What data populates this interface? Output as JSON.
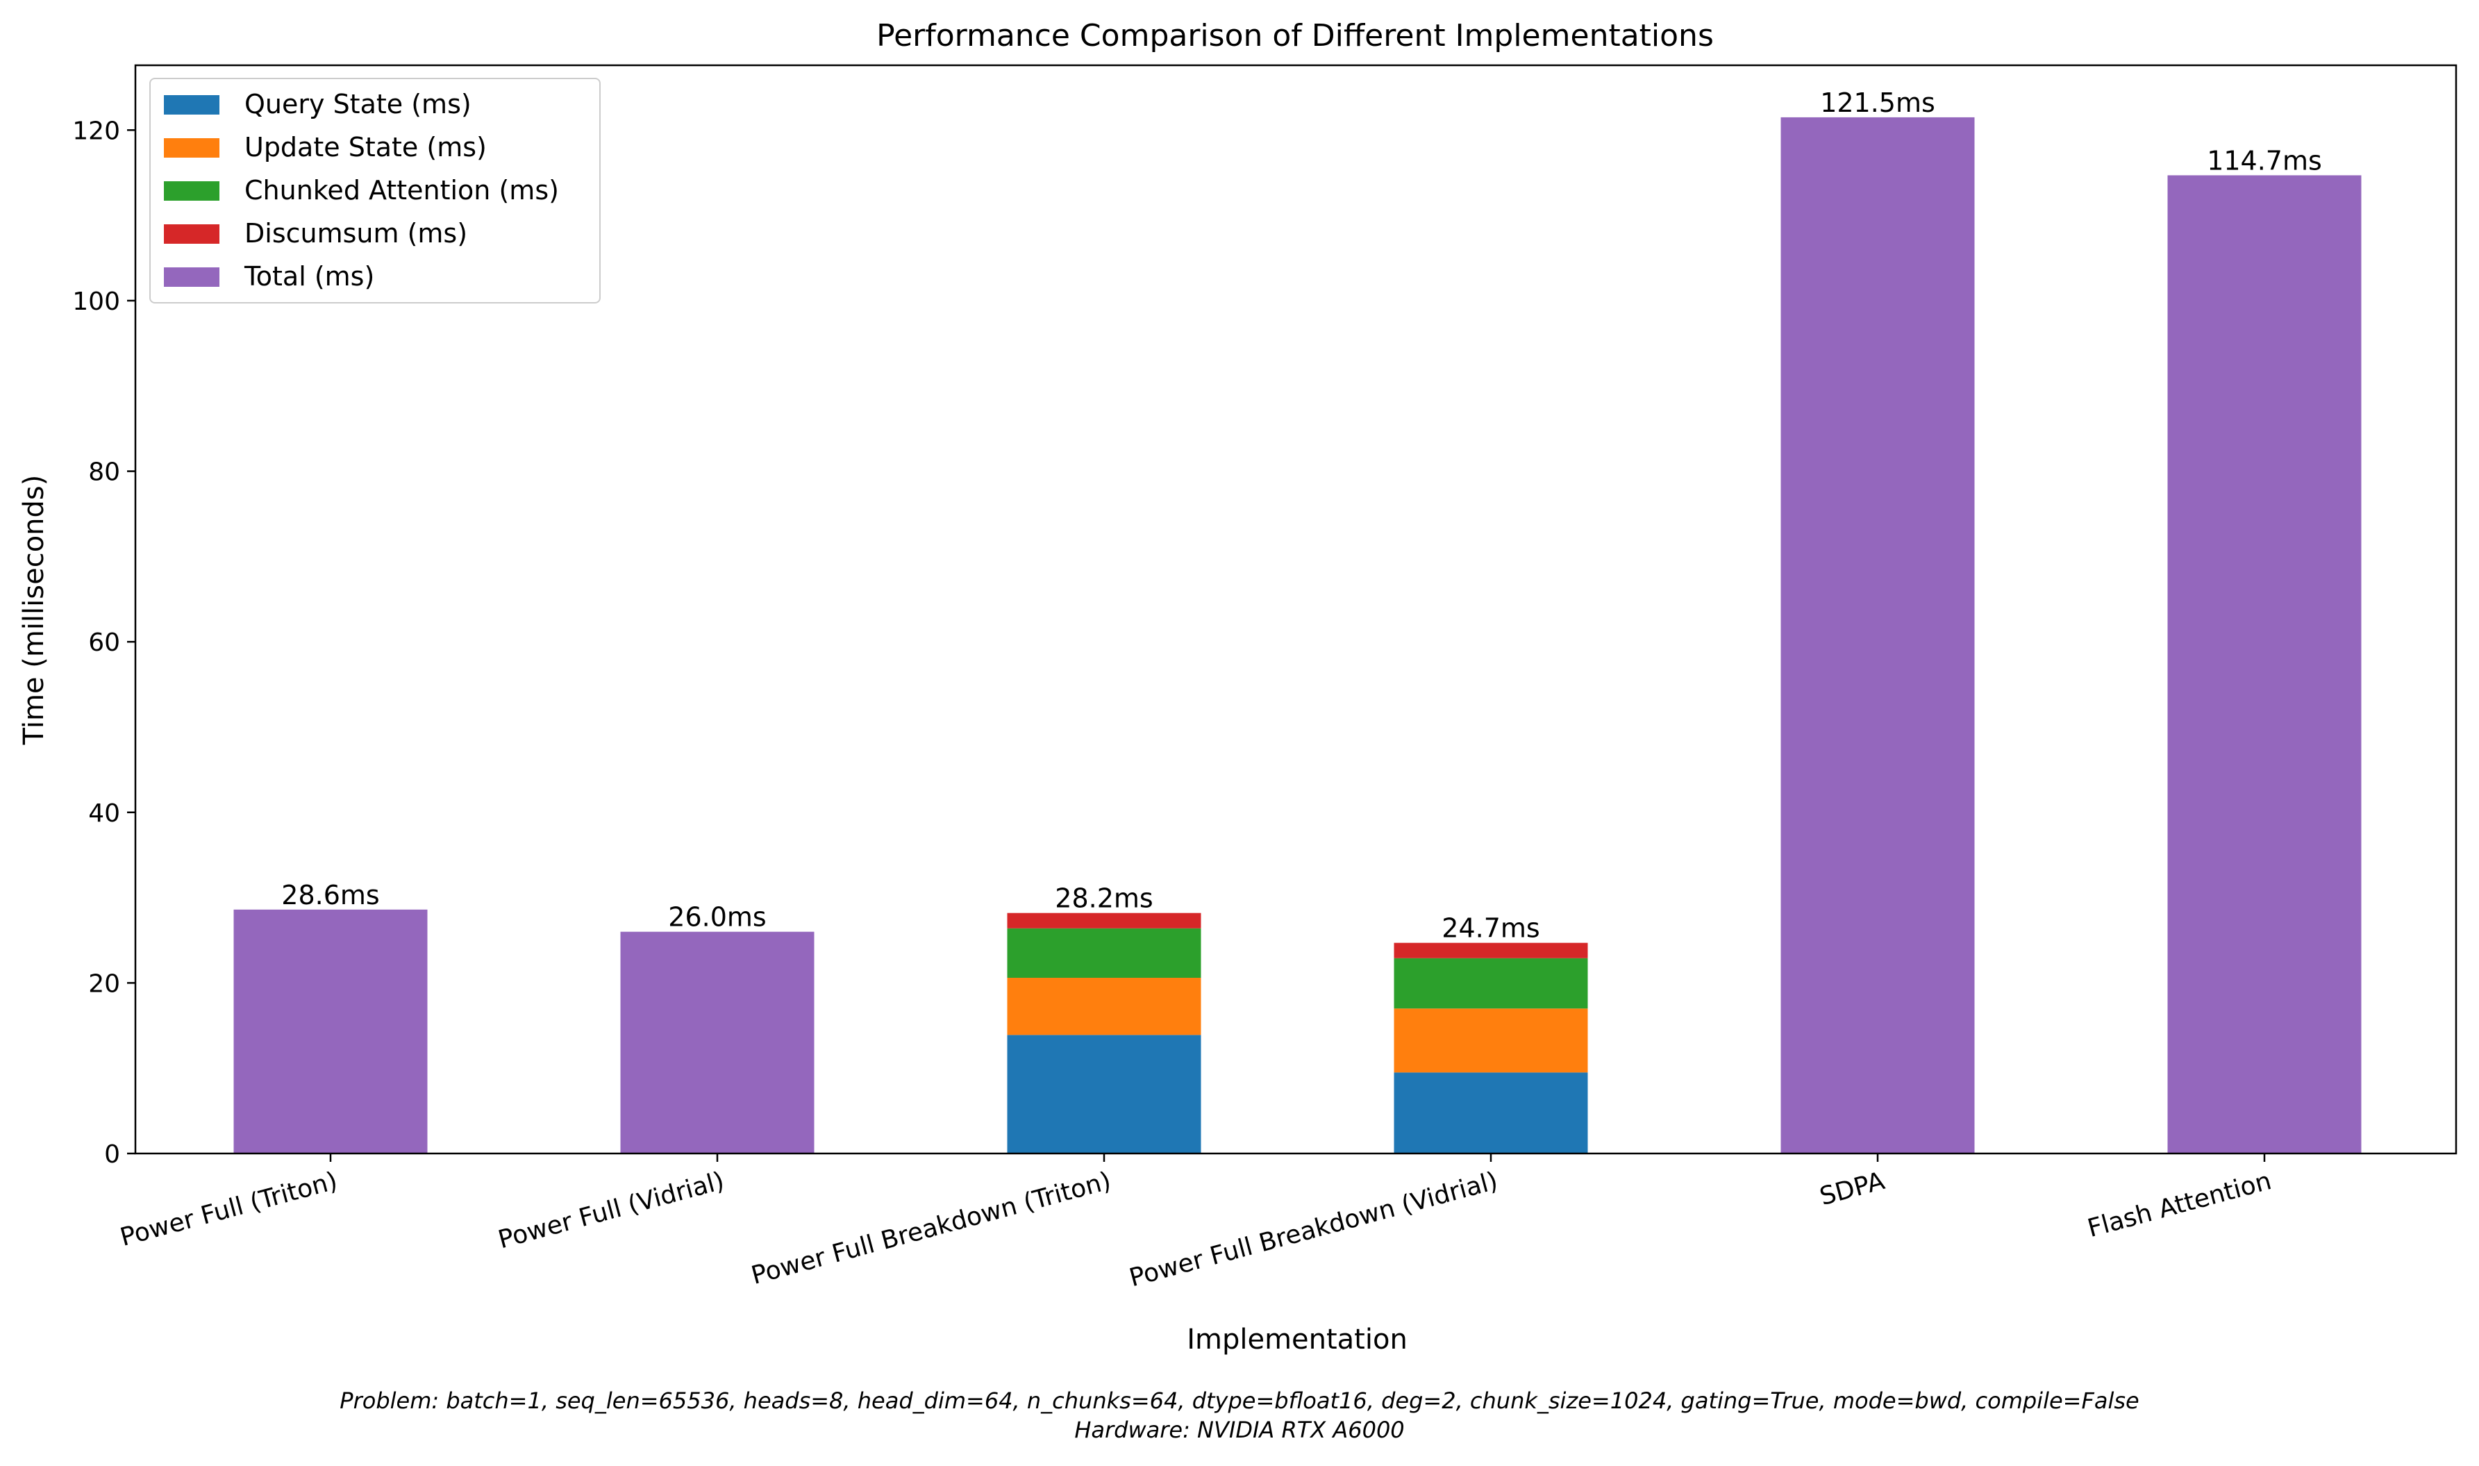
{
  "chart_data": {
    "type": "bar",
    "stacked": true,
    "title": "Performance Comparison of Different Implementations",
    "xlabel": "Implementation",
    "ylabel": "Time (milliseconds)",
    "ylim": [
      0,
      127.6
    ],
    "yticks": [
      0,
      20,
      40,
      60,
      80,
      100,
      120
    ],
    "grid": false,
    "legend_position": "top-left",
    "categories": [
      "Power Full (Triton)",
      "Power Full (Vidrial)",
      "Power Full Breakdown (Triton)",
      "Power Full Breakdown (Vidrial)",
      "SDPA",
      "Flash Attention"
    ],
    "series": [
      {
        "name": "Query State (ms)",
        "color": "#1f77b4",
        "values": [
          0,
          0,
          13.9,
          9.5,
          0,
          0
        ]
      },
      {
        "name": "Update State (ms)",
        "color": "#ff7f0e",
        "values": [
          0,
          0,
          6.7,
          7.5,
          0,
          0
        ]
      },
      {
        "name": "Chunked Attention (ms)",
        "color": "#2ca02c",
        "values": [
          0,
          0,
          5.8,
          5.9,
          0,
          0
        ]
      },
      {
        "name": "Discumsum (ms)",
        "color": "#d62728",
        "values": [
          0,
          0,
          1.8,
          1.8,
          0,
          0
        ]
      },
      {
        "name": "Total (ms)",
        "color": "#9467bd",
        "values": [
          28.6,
          26.0,
          0,
          0,
          121.5,
          114.7
        ]
      }
    ],
    "bar_labels": [
      "28.6ms",
      "26.0ms",
      "28.2ms",
      "24.7ms",
      "121.5ms",
      "114.7ms"
    ],
    "bar_label_values": [
      28.6,
      26.0,
      28.2,
      24.7,
      121.5,
      114.7
    ],
    "footnote": [
      "Problem: batch=1, seq_len=65536, heads=8, head_dim=64, n_chunks=64, dtype=bfloat16, deg=2, chunk_size=1024, gating=True, mode=bwd, compile=False",
      "Hardware: NVIDIA RTX A6000"
    ]
  }
}
